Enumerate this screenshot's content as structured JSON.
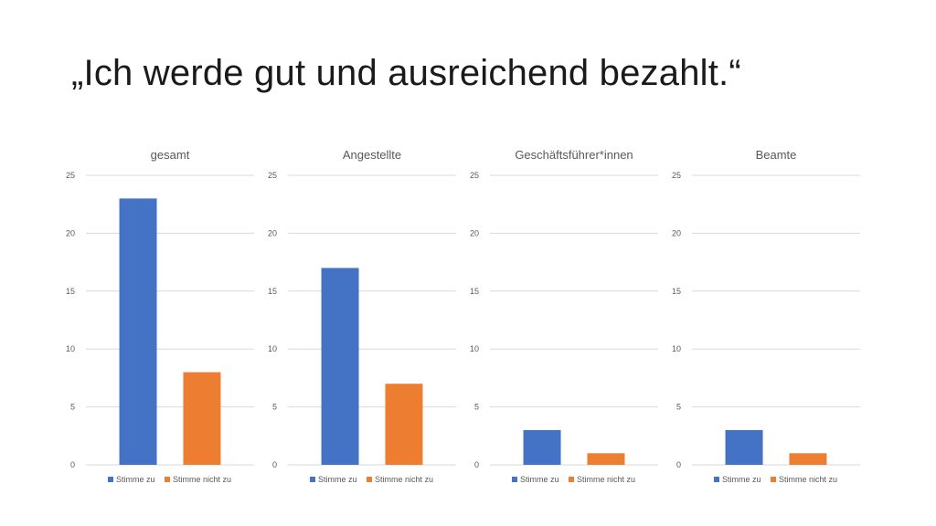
{
  "slide": {
    "title": "„Ich werde gut und ausreichend bezahlt.“"
  },
  "colors": {
    "stimme_zu": "#4472C4",
    "stimme_nicht_zu": "#ED7D31"
  },
  "chart_data": [
    {
      "type": "bar",
      "title": "gesamt",
      "categories": [
        "Stimme zu",
        "Stimme nicht zu"
      ],
      "values": [
        23,
        8
      ],
      "ylim": [
        0,
        25
      ],
      "yticks": [
        0,
        5,
        10,
        15,
        20,
        25
      ],
      "grid": true,
      "legend": "bottom"
    },
    {
      "type": "bar",
      "title": "Angestellte",
      "categories": [
        "Stimme zu",
        "Stimme nicht zu"
      ],
      "values": [
        17,
        7
      ],
      "ylim": [
        0,
        25
      ],
      "yticks": [
        0,
        5,
        10,
        15,
        20,
        25
      ],
      "grid": true,
      "legend": "bottom"
    },
    {
      "type": "bar",
      "title": "Geschäftsführer*innen",
      "categories": [
        "Stimme zu",
        "Stimme nicht zu"
      ],
      "values": [
        3,
        1
      ],
      "ylim": [
        0,
        25
      ],
      "yticks": [
        0,
        5,
        10,
        15,
        20,
        25
      ],
      "grid": true,
      "legend": "bottom"
    },
    {
      "type": "bar",
      "title": "Beamte",
      "categories": [
        "Stimme zu",
        "Stimme nicht zu"
      ],
      "values": [
        3,
        1
      ],
      "ylim": [
        0,
        25
      ],
      "yticks": [
        0,
        5,
        10,
        15,
        20,
        25
      ],
      "grid": true,
      "legend": "bottom"
    }
  ]
}
